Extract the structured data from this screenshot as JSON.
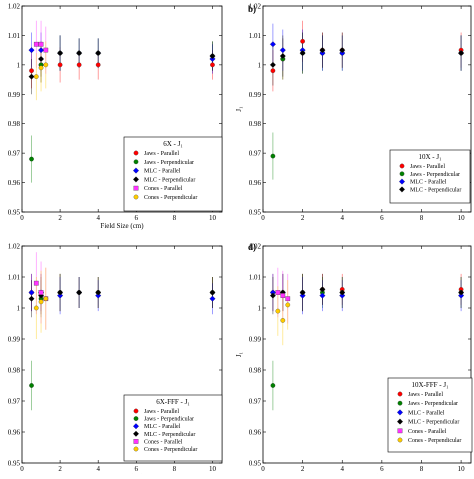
{
  "figure": {
    "panel_letters": [
      "",
      "b)",
      "",
      "d)"
    ]
  },
  "chart_data": [
    {
      "type": "scatter",
      "panel": "",
      "title": "6X - J₁",
      "xlabel": "Field Size (cm)",
      "ylabel": "",
      "xlim": [
        0,
        10.5
      ],
      "ylim": [
        0.95,
        1.02
      ],
      "xticks": [
        "0",
        "2",
        "4",
        "6",
        "8",
        "10"
      ],
      "yticks": [
        "0.95",
        "0.96",
        "0.97",
        "0.98",
        "0.99",
        "1",
        "1.01",
        "1.02"
      ],
      "legend_position": "lower-right",
      "series": [
        {
          "name": "Jaws - Parallel",
          "color": "#ff0000",
          "marker": "circle",
          "points": [
            {
              "x": 0.5,
              "y": 0.998,
              "err": 0.006
            },
            {
              "x": 1,
              "y": 1.0,
              "err": 0.006
            },
            {
              "x": 2,
              "y": 1.0,
              "err": 0.006
            },
            {
              "x": 3,
              "y": 1.0,
              "err": 0.005
            },
            {
              "x": 4,
              "y": 1.0,
              "err": 0.005
            },
            {
              "x": 10,
              "y": 1.0,
              "err": 0.005
            }
          ]
        },
        {
          "name": "Jaws - Perpendicular",
          "color": "#008000",
          "marker": "circle",
          "points": [
            {
              "x": 0.5,
              "y": 0.968,
              "err": 0.008
            },
            {
              "x": 1,
              "y": 1.0,
              "err": 0.006
            },
            {
              "x": 2,
              "y": 1.004,
              "err": 0.006
            },
            {
              "x": 3,
              "y": 1.004,
              "err": 0.005
            },
            {
              "x": 4,
              "y": 1.004,
              "err": 0.005
            },
            {
              "x": 10,
              "y": 1.003,
              "err": 0.005
            }
          ]
        },
        {
          "name": "MLC - Parallel",
          "color": "#0000ff",
          "marker": "diamond",
          "points": [
            {
              "x": 0.5,
              "y": 1.005,
              "err": 0.006
            },
            {
              "x": 1,
              "y": 1.005,
              "err": 0.006
            },
            {
              "x": 2,
              "y": 1.004,
              "err": 0.006
            },
            {
              "x": 3,
              "y": 1.004,
              "err": 0.005
            },
            {
              "x": 4,
              "y": 1.004,
              "err": 0.005
            },
            {
              "x": 10,
              "y": 1.002,
              "err": 0.005
            }
          ]
        },
        {
          "name": "MLC - Perpendicular",
          "color": "#000000",
          "marker": "diamond",
          "points": [
            {
              "x": 0.5,
              "y": 0.996,
              "err": 0.006
            },
            {
              "x": 1,
              "y": 1.002,
              "err": 0.006
            },
            {
              "x": 2,
              "y": 1.004,
              "err": 0.006
            },
            {
              "x": 3,
              "y": 1.004,
              "err": 0.005
            },
            {
              "x": 4,
              "y": 1.004,
              "err": 0.005
            },
            {
              "x": 10,
              "y": 1.003,
              "err": 0.005
            }
          ]
        },
        {
          "name": "Cones - Parallel",
          "color": "#ff33ff",
          "marker": "square",
          "points": [
            {
              "x": 0.75,
              "y": 1.007,
              "err": 0.008
            },
            {
              "x": 1,
              "y": 1.007,
              "err": 0.008
            },
            {
              "x": 1.25,
              "y": 1.005,
              "err": 0.008
            }
          ]
        },
        {
          "name": "Cones - Perpendicular",
          "color": "#ffcc00",
          "marker": "circle",
          "points": [
            {
              "x": 0.75,
              "y": 0.996,
              "err": 0.008
            },
            {
              "x": 1,
              "y": 0.999,
              "err": 0.008
            },
            {
              "x": 1.25,
              "y": 1.0,
              "err": 0.008
            }
          ]
        }
      ]
    },
    {
      "type": "scatter",
      "panel": "b)",
      "title": "10X - J₁",
      "xlabel": "",
      "ylabel": "J₁",
      "xlim": [
        0,
        10.5
      ],
      "ylim": [
        0.95,
        1.02
      ],
      "xticks": [
        "0",
        "2",
        "4",
        "6",
        "8",
        "10"
      ],
      "yticks": [
        "0.95",
        "0.96",
        "0.97",
        "0.98",
        "0.99",
        "1",
        "1.01",
        "1.02"
      ],
      "legend_position": "lower-right",
      "series": [
        {
          "name": "Jaws - Parallel",
          "color": "#ff0000",
          "marker": "circle",
          "points": [
            {
              "x": 0.5,
              "y": 0.998,
              "err": 0.007
            },
            {
              "x": 1,
              "y": 1.002,
              "err": 0.007
            },
            {
              "x": 2,
              "y": 1.008,
              "err": 0.007
            },
            {
              "x": 3,
              "y": 1.005,
              "err": 0.006
            },
            {
              "x": 4,
              "y": 1.005,
              "err": 0.006
            },
            {
              "x": 10,
              "y": 1.005,
              "err": 0.006
            }
          ]
        },
        {
          "name": "Jaws - Perpendicular",
          "color": "#008000",
          "marker": "circle",
          "points": [
            {
              "x": 0.5,
              "y": 0.969,
              "err": 0.008
            },
            {
              "x": 1,
              "y": 1.002,
              "err": 0.007
            },
            {
              "x": 2,
              "y": 1.004,
              "err": 0.007
            },
            {
              "x": 3,
              "y": 1.004,
              "err": 0.006
            },
            {
              "x": 4,
              "y": 1.004,
              "err": 0.006
            },
            {
              "x": 10,
              "y": 1.004,
              "err": 0.006
            }
          ]
        },
        {
          "name": "MLC - Parallel",
          "color": "#0000ff",
          "marker": "diamond",
          "points": [
            {
              "x": 0.5,
              "y": 1.007,
              "err": 0.007
            },
            {
              "x": 1,
              "y": 1.005,
              "err": 0.007
            },
            {
              "x": 2,
              "y": 1.005,
              "err": 0.007
            },
            {
              "x": 3,
              "y": 1.004,
              "err": 0.006
            },
            {
              "x": 4,
              "y": 1.004,
              "err": 0.006
            },
            {
              "x": 10,
              "y": 1.004,
              "err": 0.006
            }
          ]
        },
        {
          "name": "MLC - Perpendicular",
          "color": "#000000",
          "marker": "diamond",
          "points": [
            {
              "x": 0.5,
              "y": 1.0,
              "err": 0.007
            },
            {
              "x": 1,
              "y": 1.003,
              "err": 0.007
            },
            {
              "x": 2,
              "y": 1.004,
              "err": 0.007
            },
            {
              "x": 3,
              "y": 1.005,
              "err": 0.006
            },
            {
              "x": 4,
              "y": 1.005,
              "err": 0.006
            },
            {
              "x": 10,
              "y": 1.004,
              "err": 0.006
            }
          ]
        }
      ]
    },
    {
      "type": "scatter",
      "panel": "",
      "title": "6X-FFF - J₁",
      "xlabel": "Field Size (cm)",
      "ylabel": "",
      "xlim": [
        0,
        10.5
      ],
      "ylim": [
        0.95,
        1.02
      ],
      "xticks": [
        "0",
        "2",
        "4",
        "6",
        "8",
        "10"
      ],
      "yticks": [
        "0.95",
        "0.96",
        "0.97",
        "0.98",
        "0.99",
        "1",
        "1.01",
        "1.02"
      ],
      "legend_position": "lower-right",
      "series": [
        {
          "name": "Jaws - Parallel",
          "color": "#ff0000",
          "marker": "circle",
          "points": [
            {
              "x": 0.5,
              "y": 1.005,
              "err": 0.006
            },
            {
              "x": 1,
              "y": 1.005,
              "err": 0.006
            },
            {
              "x": 2,
              "y": 1.005,
              "err": 0.006
            },
            {
              "x": 3,
              "y": 1.005,
              "err": 0.005
            },
            {
              "x": 4,
              "y": 1.005,
              "err": 0.005
            },
            {
              "x": 10,
              "y": 1.005,
              "err": 0.005
            }
          ]
        },
        {
          "name": "Jaws - Perpendicular",
          "color": "#008000",
          "marker": "circle",
          "points": [
            {
              "x": 0.5,
              "y": 0.975,
              "err": 0.008
            },
            {
              "x": 1,
              "y": 1.003,
              "err": 0.006
            },
            {
              "x": 2,
              "y": 1.005,
              "err": 0.006
            },
            {
              "x": 3,
              "y": 1.005,
              "err": 0.005
            },
            {
              "x": 4,
              "y": 1.005,
              "err": 0.005
            },
            {
              "x": 10,
              "y": 1.005,
              "err": 0.005
            }
          ]
        },
        {
          "name": "MLC - Parallel",
          "color": "#0000ff",
          "marker": "diamond",
          "points": [
            {
              "x": 0.5,
              "y": 1.005,
              "err": 0.006
            },
            {
              "x": 1,
              "y": 1.005,
              "err": 0.006
            },
            {
              "x": 2,
              "y": 1.004,
              "err": 0.006
            },
            {
              "x": 3,
              "y": 1.005,
              "err": 0.005
            },
            {
              "x": 4,
              "y": 1.004,
              "err": 0.005
            },
            {
              "x": 10,
              "y": 1.003,
              "err": 0.005
            }
          ]
        },
        {
          "name": "MLC - Perpendicular",
          "color": "#000000",
          "marker": "diamond",
          "points": [
            {
              "x": 0.5,
              "y": 1.003,
              "err": 0.006
            },
            {
              "x": 1,
              "y": 1.004,
              "err": 0.006
            },
            {
              "x": 2,
              "y": 1.005,
              "err": 0.006
            },
            {
              "x": 3,
              "y": 1.005,
              "err": 0.005
            },
            {
              "x": 4,
              "y": 1.005,
              "err": 0.005
            },
            {
              "x": 10,
              "y": 1.005,
              "err": 0.005
            }
          ]
        },
        {
          "name": "Cones - Parallel",
          "color": "#ff33ff",
          "marker": "square",
          "points": [
            {
              "x": 0.75,
              "y": 1.008,
              "err": 0.01
            },
            {
              "x": 1,
              "y": 1.005,
              "err": 0.01
            },
            {
              "x": 1.25,
              "y": 1.003,
              "err": 0.01
            }
          ]
        },
        {
          "name": "Cones - Perpendicular",
          "color": "#ffcc00",
          "marker": "circle",
          "points": [
            {
              "x": 0.75,
              "y": 1.0,
              "err": 0.01
            },
            {
              "x": 1,
              "y": 1.002,
              "err": 0.01
            },
            {
              "x": 1.25,
              "y": 1.003,
              "err": 0.01
            }
          ]
        }
      ]
    },
    {
      "type": "scatter",
      "panel": "d)",
      "title": "10X-FFF - J₁",
      "xlabel": "Field Size (cm)",
      "ylabel": "J₁",
      "xlim": [
        0,
        10.5
      ],
      "ylim": [
        0.95,
        1.02
      ],
      "xticks": [
        "0",
        "2",
        "4",
        "6",
        "8",
        "10"
      ],
      "yticks": [
        "0.95",
        "0.96",
        "0.97",
        "0.98",
        "0.99",
        "1",
        "1.01",
        "1.02"
      ],
      "legend_position": "lower-right",
      "series": [
        {
          "name": "Jaws - Parallel",
          "color": "#ff0000",
          "marker": "circle",
          "points": [
            {
              "x": 0.5,
              "y": 1.005,
              "err": 0.006
            },
            {
              "x": 1,
              "y": 1.005,
              "err": 0.006
            },
            {
              "x": 2,
              "y": 1.005,
              "err": 0.006
            },
            {
              "x": 3,
              "y": 1.006,
              "err": 0.005
            },
            {
              "x": 4,
              "y": 1.006,
              "err": 0.005
            },
            {
              "x": 10,
              "y": 1.006,
              "err": 0.005
            }
          ]
        },
        {
          "name": "Jaws - Perpendicular",
          "color": "#008000",
          "marker": "circle",
          "points": [
            {
              "x": 0.5,
              "y": 0.975,
              "err": 0.008
            },
            {
              "x": 1,
              "y": 1.005,
              "err": 0.006
            },
            {
              "x": 2,
              "y": 1.005,
              "err": 0.006
            },
            {
              "x": 3,
              "y": 1.005,
              "err": 0.005
            },
            {
              "x": 4,
              "y": 1.005,
              "err": 0.005
            },
            {
              "x": 10,
              "y": 1.005,
              "err": 0.005
            }
          ]
        },
        {
          "name": "MLC - Parallel",
          "color": "#0000ff",
          "marker": "diamond",
          "points": [
            {
              "x": 0.5,
              "y": 1.005,
              "err": 0.006
            },
            {
              "x": 1,
              "y": 1.005,
              "err": 0.006
            },
            {
              "x": 2,
              "y": 1.004,
              "err": 0.006
            },
            {
              "x": 3,
              "y": 1.004,
              "err": 0.005
            },
            {
              "x": 4,
              "y": 1.004,
              "err": 0.005
            },
            {
              "x": 10,
              "y": 1.004,
              "err": 0.005
            }
          ]
        },
        {
          "name": "MLC - Perpendicular",
          "color": "#000000",
          "marker": "diamond",
          "points": [
            {
              "x": 0.5,
              "y": 1.004,
              "err": 0.006
            },
            {
              "x": 1,
              "y": 1.005,
              "err": 0.006
            },
            {
              "x": 2,
              "y": 1.005,
              "err": 0.006
            },
            {
              "x": 3,
              "y": 1.006,
              "err": 0.005
            },
            {
              "x": 4,
              "y": 1.005,
              "err": 0.005
            },
            {
              "x": 10,
              "y": 1.005,
              "err": 0.005
            }
          ]
        },
        {
          "name": "Cones - Parallel",
          "color": "#ff33ff",
          "marker": "square",
          "points": [
            {
              "x": 0.75,
              "y": 1.005,
              "err": 0.008
            },
            {
              "x": 1,
              "y": 1.004,
              "err": 0.008
            },
            {
              "x": 1.25,
              "y": 1.003,
              "err": 0.008
            }
          ]
        },
        {
          "name": "Cones - Perpendicular",
          "color": "#ffcc00",
          "marker": "circle",
          "points": [
            {
              "x": 0.75,
              "y": 0.999,
              "err": 0.008
            },
            {
              "x": 1,
              "y": 0.996,
              "err": 0.008
            },
            {
              "x": 1.25,
              "y": 1.001,
              "err": 0.008
            }
          ]
        }
      ]
    }
  ]
}
